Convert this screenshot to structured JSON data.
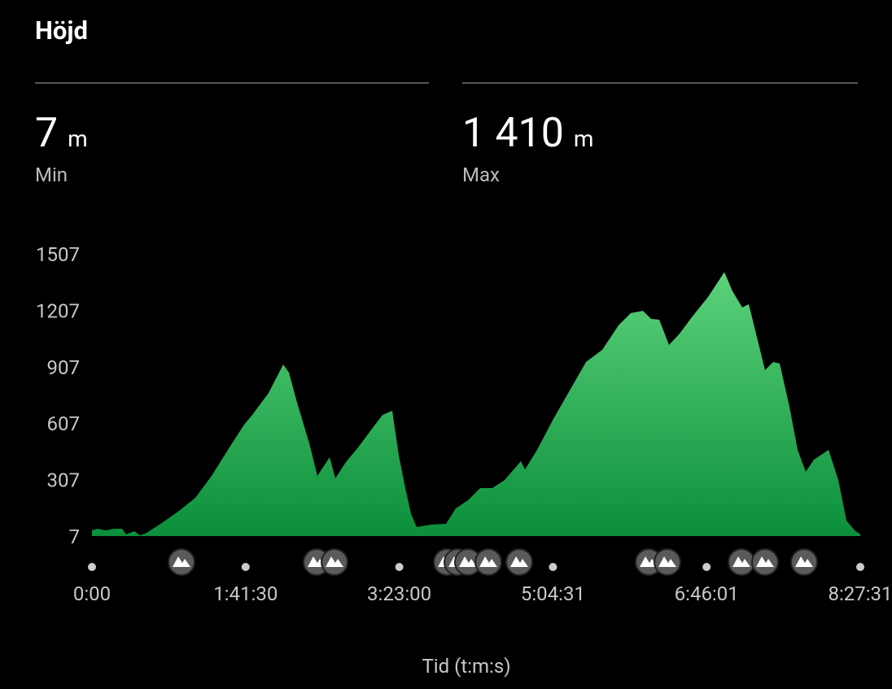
{
  "header": {
    "title": "Höjd"
  },
  "stats": [
    {
      "value": "7",
      "unit": "m",
      "label": "Min"
    },
    {
      "value": "1 410",
      "unit": "m",
      "label": "Max"
    }
  ],
  "chart_data": {
    "type": "area",
    "x_label": "Tid (t:m:s)",
    "color_top": "#5cd27a",
    "color_bottom": "#0b8f3b",
    "xlim": [
      0,
      30451
    ],
    "ylim": [
      7,
      1507
    ],
    "xticks": [
      {
        "value": 0,
        "label": "0:00"
      },
      {
        "value": 6090,
        "label": "1:41:30"
      },
      {
        "value": 12180,
        "label": "3:23:00"
      },
      {
        "value": 18271,
        "label": "5:04:31"
      },
      {
        "value": 24361,
        "label": "6:46:01"
      },
      {
        "value": 30451,
        "label": "8:27:31"
      }
    ],
    "yticks": [
      7,
      307,
      607,
      907,
      1207,
      1507
    ],
    "x": [
      0,
      226,
      548,
      871,
      1194,
      1355,
      1677,
      1903,
      2161,
      2806,
      3452,
      4097,
      4742,
      5387,
      6032,
      6355,
      7000,
      7581,
      7806,
      8129,
      8613,
      8935,
      9419,
      9645,
      10065,
      10548,
      11032,
      11516,
      11903,
      12161,
      12419,
      12645,
      12871,
      13452,
      14032,
      14419,
      14903,
      15387,
      15871,
      16355,
      17000,
      17161,
      17645,
      18290,
      18935,
      19581,
      20226,
      20871,
      21355,
      21839,
      22161,
      22484,
      22871,
      23290,
      23774,
      24419,
      25065,
      25387,
      25774,
      26032,
      26677,
      27000,
      27258,
      27645,
      27968,
      28290,
      28613,
      29194,
      29581,
      29903,
      30226,
      30451
    ],
    "values": [
      37,
      46,
      37,
      46,
      46,
      16,
      33,
      11,
      24,
      80,
      141,
      210,
      327,
      465,
      599,
      651,
      768,
      919,
      876,
      716,
      500,
      327,
      426,
      314,
      400,
      478,
      565,
      651,
      673,
      435,
      262,
      124,
      55,
      68,
      72,
      154,
      197,
      262,
      262,
      305,
      405,
      361,
      465,
      630,
      781,
      932,
      997,
      1127,
      1192,
      1204,
      1161,
      1157,
      1023,
      1083,
      1170,
      1278,
      1410,
      1308,
      1222,
      1239,
      889,
      932,
      924,
      694,
      465,
      349,
      413,
      465,
      305,
      89,
      37,
      16
    ],
    "markers": [
      3548,
      8903,
      9613,
      14065,
      14484,
      14903,
      15710,
      16935,
      22065,
      22806,
      25742,
      26677,
      28226
    ]
  }
}
